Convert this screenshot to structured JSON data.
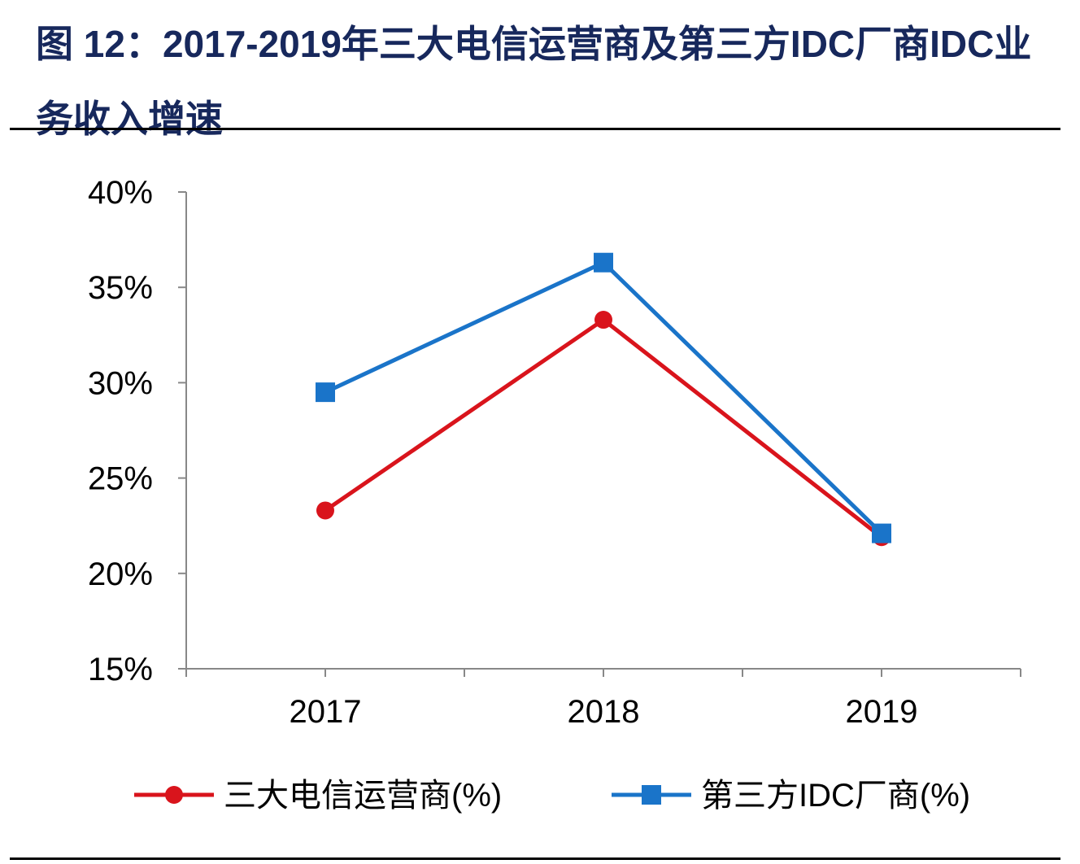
{
  "title": "图 12：2017-2019年三大电信运营商及第三方IDC厂商IDC业务收入增速",
  "chart_data": {
    "type": "line",
    "title": "图 12：2017-2019年三大电信运营商及第三方IDC厂商IDC业务收入增速",
    "categories": [
      "2017",
      "2018",
      "2019"
    ],
    "ylim": [
      15,
      40
    ],
    "yticks": [
      15,
      20,
      25,
      30,
      35,
      40
    ],
    "ytick_labels": [
      "15%",
      "20%",
      "25%",
      "30%",
      "35%",
      "40%"
    ],
    "grid": false,
    "legend_placement": "bottom",
    "series": [
      {
        "name": "三大电信运营商(%)",
        "values": [
          23.3,
          33.3,
          21.9
        ],
        "color": "#d9141c",
        "marker": "circle"
      },
      {
        "name": "第三方IDC厂商(%)",
        "values": [
          29.5,
          36.3,
          22.1
        ],
        "color": "#1a74c9",
        "marker": "square"
      }
    ]
  }
}
